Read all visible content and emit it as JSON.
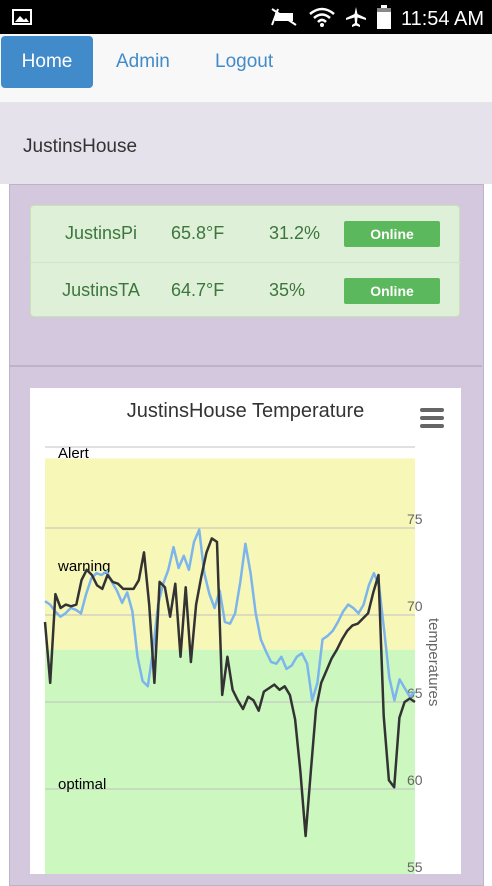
{
  "status_bar": {
    "time": "11:54 AM"
  },
  "nav": {
    "home": "Home",
    "admin": "Admin",
    "logout": "Logout"
  },
  "house": {
    "name": "JustinsHouse"
  },
  "devices": [
    {
      "name": "JustinsPi",
      "temperature": "65.8°F",
      "humidity": "31.2%",
      "status": "Online"
    },
    {
      "name": "JustinsTA",
      "temperature": "64.7°F",
      "humidity": "35%",
      "status": "Online"
    }
  ],
  "colors": {
    "accent": "#428bca",
    "online": "#5cb85c",
    "series_blue": "#7cb5ec",
    "series_black": "#333333",
    "alert_band": "#f7f7b8",
    "optimal_band": "#ccf8c0"
  },
  "chart_data": {
    "type": "line",
    "title": "JustinsHouse Temperature",
    "ylabel": "temperatures",
    "y_ticks": [
      55,
      60,
      65,
      70,
      75
    ],
    "ylim": [
      55,
      79
    ],
    "grid": true,
    "bands": [
      {
        "label": "Alert",
        "from": 68,
        "to": 80
      },
      {
        "label": "warning",
        "from": 68,
        "to": 80
      },
      {
        "label": "optimal",
        "from": 55,
        "to": 68
      }
    ],
    "series": [
      {
        "values": [
          70.8,
          70.6,
          70.2,
          69.9,
          70.1,
          70.4,
          70.3,
          70.1,
          71.2,
          72.1,
          72.4,
          72.3,
          72.5,
          71.9,
          71.4,
          70.7,
          71.3,
          70.2,
          67.6,
          66.2,
          65.9,
          67.9,
          70.6,
          71.8,
          72.6,
          73.9,
          72.7,
          73.4,
          72.6,
          74.2,
          74.9,
          72.4,
          71.2,
          70.4,
          71.4,
          69.6,
          69.5,
          70.1,
          71.9,
          74.1,
          72.4,
          70.1,
          68.6,
          67.9,
          67.3,
          67.2,
          67.6,
          66.9,
          67.1,
          67.6,
          67.8,
          67.2,
          65.1,
          66.1,
          68.6,
          68.8,
          69.1,
          69.6,
          70.2,
          70.6,
          70.4,
          70.1,
          70.6,
          71.7,
          72.4,
          71.7,
          69.1,
          66.4,
          65.1,
          66.3,
          65.8,
          65.3,
          65.6
        ]
      },
      {
        "values": [
          69.6,
          66.1,
          71.2,
          70.4,
          70.6,
          70.5,
          70.6,
          72.0,
          72.6,
          72.3,
          71.7,
          71.5,
          72.3,
          71.9,
          71.8,
          71.5,
          71.5,
          71.5,
          72.0,
          73.6,
          70.6,
          66.1,
          71.9,
          71.6,
          69.9,
          71.8,
          67.6,
          71.6,
          67.3,
          70.6,
          72.2,
          73.6,
          74.4,
          74.2,
          65.4,
          67.6,
          65.7,
          65.1,
          64.6,
          65.3,
          65.1,
          64.5,
          65.6,
          65.8,
          66.0,
          65.7,
          65.9,
          65.4,
          64.0,
          61.0,
          57.3,
          61.0,
          64.6,
          66.1,
          66.8,
          67.5,
          68.0,
          68.6,
          69.1,
          69.4,
          69.5,
          69.8,
          70.1,
          71.3,
          72.3,
          64.2,
          60.5,
          60.1,
          64.1,
          65.0,
          65.2,
          65.0
        ]
      }
    ]
  }
}
